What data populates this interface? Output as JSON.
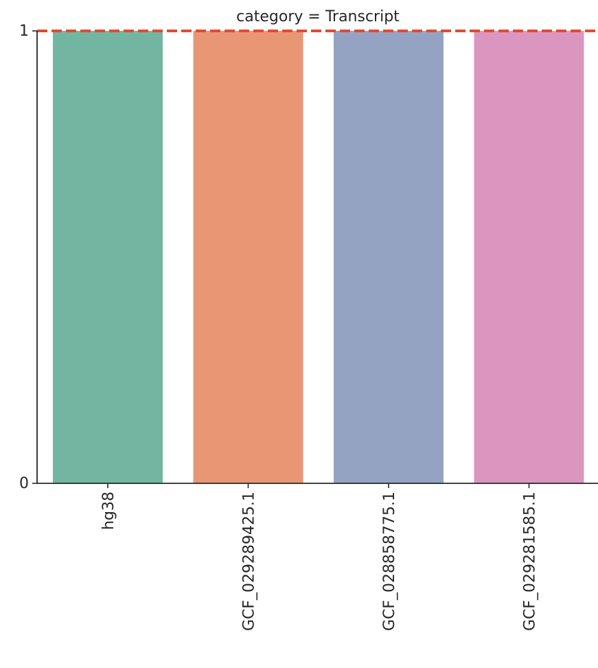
{
  "chart_data": {
    "type": "bar",
    "title": "category = Transcript",
    "xlabel": "",
    "ylabel": "",
    "categories": [
      "hg38",
      "GCF_029289425.1",
      "GCF_028858775.1",
      "GCF_029281585.1"
    ],
    "values": [
      1,
      1,
      1,
      1
    ],
    "colors": [
      "#72b6a1",
      "#e99675",
      "#95a3c3",
      "#db96c0"
    ],
    "ylim": [
      0,
      1
    ],
    "yticks": [
      0,
      1
    ],
    "ytick_labels": [
      "0",
      "1"
    ],
    "reference_line": {
      "y": 1,
      "color": "#e24a33",
      "style": "dashed"
    },
    "grid": false,
    "legend": "none"
  }
}
